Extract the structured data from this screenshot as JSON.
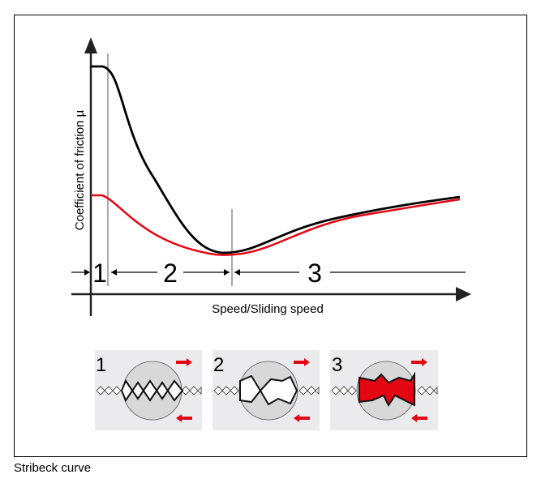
{
  "diagram": {
    "y_axis_label": "Coefficient of friction µ",
    "x_axis_label": "Speed/Sliding speed",
    "regions": [
      "1",
      "2",
      "3"
    ],
    "panels": [
      {
        "number": "1",
        "state": "boundary"
      },
      {
        "number": "2",
        "state": "mixed"
      },
      {
        "number": "3",
        "state": "hydrodynamic"
      }
    ],
    "colors": {
      "curve_dry": "#000000",
      "curve_lubricated": "#e30613",
      "arrow": "#e30613",
      "panel_bg": "#ebebed",
      "circle": "#d9d9d9"
    }
  },
  "caption": "Stribeck curve"
}
